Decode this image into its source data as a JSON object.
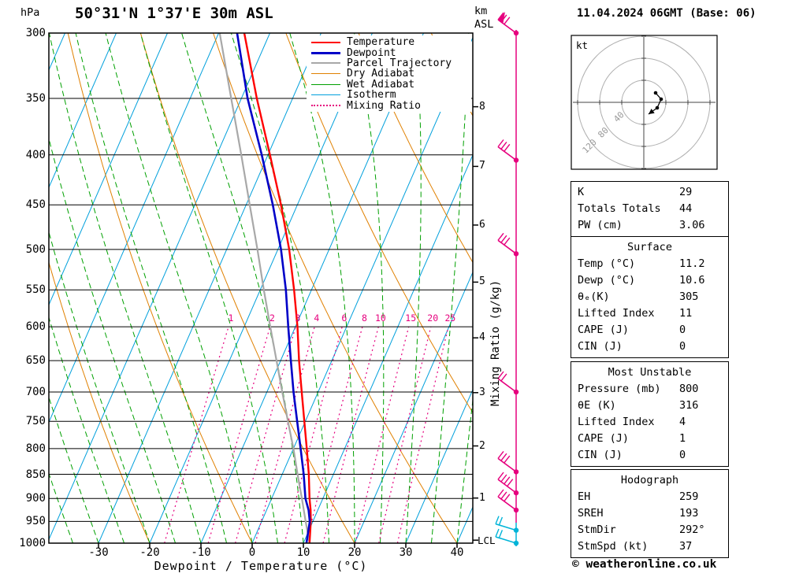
{
  "header": {
    "pressure_unit": "hPa",
    "title": "50°31'N 1°37'E 30m ASL",
    "km_asl_label": "km\nASL",
    "datetime": "11.04.2024 06GMT (Base: 06)"
  },
  "footer": {
    "copyright": "© weatheronline.co.uk"
  },
  "axes": {
    "pressure_ticks": [
      300,
      350,
      400,
      450,
      500,
      550,
      600,
      650,
      700,
      750,
      800,
      850,
      900,
      950,
      1000
    ],
    "temp_ticks": [
      -30,
      -20,
      -10,
      0,
      10,
      20,
      30,
      40
    ],
    "xlabel": "Dewpoint / Temperature (°C)",
    "mixing_ratio_label": "Mixing Ratio (g/kg)",
    "lcl_label": "LCL"
  },
  "legend": {
    "items": [
      {
        "label": "Temperature",
        "color": "#ff0000",
        "style": "solid",
        "weight": 2.5
      },
      {
        "label": "Dewpoint",
        "color": "#0000c8",
        "style": "solid",
        "weight": 3
      },
      {
        "label": "Parcel Trajectory",
        "color": "#a8a8a8",
        "style": "solid",
        "weight": 2.5
      },
      {
        "label": "Dry Adiabat",
        "color": "#e08000",
        "style": "solid",
        "weight": 1.5
      },
      {
        "label": "Wet Adiabat",
        "color": "#00a000",
        "style": "solid",
        "weight": 1.5
      },
      {
        "label": "Isotherm",
        "color": "#00a0dc",
        "style": "solid",
        "weight": 1.5
      },
      {
        "label": "Mixing Ratio",
        "color": "#e6007e",
        "style": "dotted",
        "weight": 2
      }
    ]
  },
  "hodograph": {
    "unit_label": "kt",
    "ring_labels": [
      "120",
      "80",
      "40"
    ],
    "ring_radii_kt": [
      120,
      80,
      40
    ],
    "trace": [
      [
        15,
        -12
      ],
      [
        22,
        -4
      ],
      [
        17,
        7
      ],
      [
        6,
        15
      ]
    ]
  },
  "stats_boxes": [
    {
      "header": null,
      "rows": [
        [
          "K",
          "29"
        ],
        [
          "Totals Totals",
          "44"
        ],
        [
          "PW (cm)",
          "3.06"
        ]
      ]
    },
    {
      "header": "Surface",
      "rows": [
        [
          "Temp (°C)",
          "11.2"
        ],
        [
          "Dewp (°C)",
          "10.6"
        ],
        [
          "θₑ(K)",
          "305"
        ],
        [
          "Lifted Index",
          "11"
        ],
        [
          "CAPE (J)",
          "0"
        ],
        [
          "CIN (J)",
          "0"
        ]
      ]
    },
    {
      "header": "Most Unstable",
      "rows": [
        [
          "Pressure (mb)",
          "800"
        ],
        [
          "θE (K)",
          "316"
        ],
        [
          "Lifted Index",
          "4"
        ],
        [
          "CAPE (J)",
          "1"
        ],
        [
          "CIN (J)",
          "0"
        ]
      ]
    },
    {
      "header": "Hodograph",
      "rows": [
        [
          "EH",
          "259"
        ],
        [
          "SREH",
          "193"
        ],
        [
          "StmDir",
          "292°"
        ],
        [
          "StmSpd (kt)",
          "37"
        ]
      ]
    }
  ],
  "chart_data": {
    "type": "skewt-log-p",
    "location_title": "50°31'N 1°37'E 30m ASL",
    "pressure_range_hpa": [
      300,
      1000
    ],
    "isotherm_step_c": 10,
    "dry_adiabat_step_c": 20,
    "wet_adiabat_step_c": 5,
    "mixing_ratio_lines_g_kg": [
      1,
      2,
      3,
      4,
      6,
      8,
      10,
      15,
      20,
      25
    ],
    "temperature_profile": [
      [
        1000,
        11.2
      ],
      [
        950,
        9.6
      ],
      [
        925,
        8.6
      ],
      [
        900,
        7.4
      ],
      [
        850,
        5.2
      ],
      [
        800,
        2.6
      ],
      [
        750,
        -0.2
      ],
      [
        700,
        -3.2
      ],
      [
        650,
        -6.4
      ],
      [
        600,
        -9.6
      ],
      [
        550,
        -13.4
      ],
      [
        500,
        -17.8
      ],
      [
        450,
        -23.2
      ],
      [
        400,
        -29.6
      ],
      [
        350,
        -37.0
      ],
      [
        300,
        -45.0
      ]
    ],
    "dewpoint_profile": [
      [
        1000,
        10.6
      ],
      [
        950,
        9.4
      ],
      [
        925,
        8.2
      ],
      [
        900,
        6.6
      ],
      [
        850,
        4.2
      ],
      [
        800,
        1.4
      ],
      [
        750,
        -1.6
      ],
      [
        700,
        -4.8
      ],
      [
        650,
        -8.0
      ],
      [
        600,
        -11.4
      ],
      [
        550,
        -15.0
      ],
      [
        500,
        -19.4
      ],
      [
        450,
        -24.8
      ],
      [
        400,
        -31.2
      ],
      [
        350,
        -38.8
      ],
      [
        300,
        -46.4
      ]
    ],
    "parcel_profile": [
      [
        1000,
        11.2
      ],
      [
        950,
        8.6
      ],
      [
        900,
        5.9
      ],
      [
        850,
        3.0
      ],
      [
        800,
        0.0
      ],
      [
        750,
        -3.4
      ],
      [
        700,
        -7.0
      ],
      [
        650,
        -10.8
      ],
      [
        600,
        -14.9
      ],
      [
        550,
        -19.3
      ],
      [
        500,
        -24.0
      ],
      [
        450,
        -29.3
      ],
      [
        400,
        -35.2
      ],
      [
        350,
        -42.0
      ],
      [
        300,
        -49.8
      ]
    ],
    "km_levels": [
      {
        "km": 1,
        "p": 899
      },
      {
        "km": 2,
        "p": 795
      },
      {
        "km": 3,
        "p": 701
      },
      {
        "km": 4,
        "p": 616
      },
      {
        "km": 5,
        "p": 540
      },
      {
        "km": 6,
        "p": 472
      },
      {
        "km": 7,
        "p": 411
      },
      {
        "km": 8,
        "p": 357
      }
    ],
    "lcl_pressure": 993,
    "wind_barbs": [
      {
        "p": 300,
        "flag": true,
        "ticks": 3,
        "color": "#e6007e"
      },
      {
        "p": 405,
        "ticks": 3,
        "color": "#e6007e"
      },
      {
        "p": 505,
        "ticks": 3,
        "color": "#e6007e"
      },
      {
        "p": 700,
        "ticks": 2,
        "color": "#e6007e"
      },
      {
        "p": 845,
        "ticks": 3,
        "color": "#e6007e"
      },
      {
        "p": 888,
        "ticks": 4,
        "color": "#e6007e"
      },
      {
        "p": 925,
        "ticks": 3,
        "color": "#e6007e"
      },
      {
        "p": 970,
        "ticks": 2,
        "color": "#00b4d8"
      },
      {
        "p": 1000,
        "ticks": 2,
        "color": "#00b4d8"
      }
    ],
    "colors": {
      "temperature": "#ff0000",
      "dewpoint": "#0000c8",
      "parcel": "#a8a8a8",
      "dry_adiabat": "#e08000",
      "wet_adiabat": "#00a000",
      "isotherm": "#00a0dc",
      "mixing_ratio": "#e6007e",
      "grid": "#000000",
      "barb_upper": "#e6007e",
      "barb_lower": "#00b4d8"
    }
  }
}
